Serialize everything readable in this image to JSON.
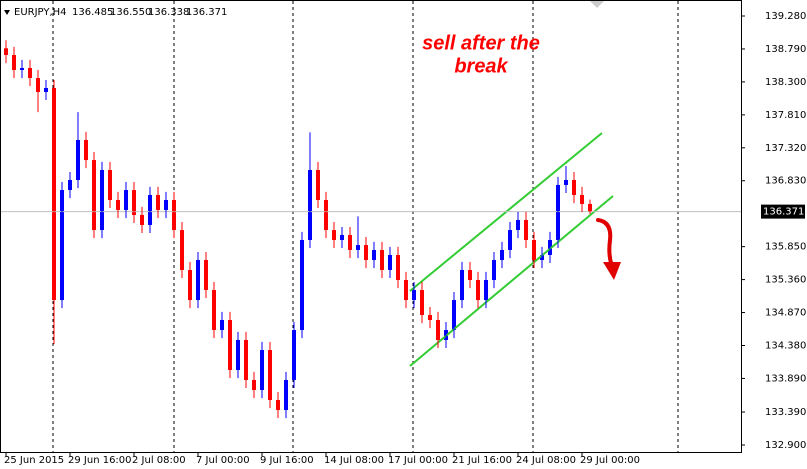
{
  "chart_data": {
    "type": "candlestick",
    "symbol": "EURJPY,H4",
    "header_values": [
      "136.485",
      "136.550",
      "136.338",
      "136.371"
    ],
    "annotation_lines": [
      "sell after the",
      "break"
    ],
    "up_color": "#0000ff",
    "down_color": "#ff0000",
    "categories": [
      "25 Jun 2015",
      null,
      null,
      null,
      null,
      null,
      null,
      null,
      "29 Jun 16:00",
      null,
      null,
      null,
      null,
      null,
      null,
      null,
      "2 Jul 08:00",
      null,
      null,
      null,
      null,
      null,
      null,
      null,
      "7 Jul 00:00",
      null,
      null,
      null,
      null,
      null,
      null,
      null,
      "9 Jul 16:00",
      null,
      null,
      null,
      null,
      null,
      null,
      null,
      "14 Jul 08:00",
      null,
      null,
      null,
      null,
      null,
      null,
      null,
      "17 Jul 00:00",
      null,
      null,
      null,
      null,
      null,
      null,
      null,
      "21 Jul 16:00",
      null,
      null,
      null,
      null,
      null,
      null,
      null,
      "24 Jul 08:00",
      null,
      null,
      null,
      null,
      null,
      null,
      null,
      "29 Jul 00:00",
      null
    ],
    "open": [
      138.8,
      138.7,
      138.477,
      138.507,
      138.358,
      138.15,
      138.209,
      135.056,
      136.692,
      136.841,
      137.436,
      137.138,
      136.097,
      136.99,
      136.544,
      136.395,
      136.692,
      136.321,
      136.172,
      136.618,
      136.395,
      136.544,
      136.097,
      135.503,
      135.056,
      135.651,
      135.205,
      134.61,
      134.759,
      134.015,
      134.462,
      133.867,
      133.718,
      134.313,
      133.569,
      133.42,
      133.867,
      134.61,
      135.949,
      136.99,
      136.544,
      136.097,
      135.949,
      136.023,
      135.8,
      135.874,
      135.651,
      135.8,
      135.503,
      135.726,
      135.354,
      135.056,
      135.205,
      134.833,
      134.759,
      134.462,
      134.61,
      135.056,
      135.503,
      135.354,
      135.056,
      135.354,
      135.651,
      135.8,
      136.097,
      136.246,
      135.949,
      135.651,
      135.726,
      135.949,
      136.767,
      136.841,
      136.618,
      136.485
    ],
    "high": [
      138.92,
      138.82,
      138.627,
      138.627,
      138.478,
      138.329,
      138.329,
      136.812,
      136.961,
      137.85,
      137.556,
      137.258,
      137.11,
      137.11,
      136.664,
      136.812,
      136.812,
      136.441,
      136.738,
      136.738,
      136.664,
      136.664,
      136.217,
      135.623,
      135.771,
      135.771,
      135.325,
      134.879,
      134.879,
      134.582,
      134.582,
      133.987,
      134.433,
      134.433,
      133.689,
      133.987,
      134.73,
      136.069,
      137.55,
      137.11,
      136.664,
      136.217,
      136.143,
      136.143,
      136.3,
      135.994,
      135.92,
      135.92,
      135.846,
      135.846,
      135.474,
      135.325,
      135.325,
      134.953,
      134.879,
      134.73,
      135.176,
      135.623,
      135.623,
      135.474,
      135.474,
      135.771,
      135.92,
      136.217,
      136.366,
      136.366,
      136.069,
      135.846,
      136.069,
      136.887,
      137.05,
      136.961,
      136.738,
      136.55
    ],
    "low": [
      138.58,
      138.357,
      138.357,
      138.238,
      137.85,
      138.03,
      134.4,
      134.936,
      136.572,
      136.721,
      137.018,
      135.977,
      135.977,
      136.424,
      136.275,
      136.275,
      136.201,
      136.052,
      136.052,
      136.275,
      136.275,
      135.977,
      135.383,
      134.936,
      134.936,
      135.085,
      134.49,
      134.49,
      133.895,
      133.895,
      133.747,
      133.598,
      133.598,
      133.449,
      133.3,
      133.3,
      133.747,
      134.49,
      135.829,
      136.424,
      135.977,
      135.829,
      135.829,
      135.68,
      135.68,
      135.531,
      135.531,
      135.383,
      135.383,
      135.234,
      134.936,
      134.936,
      134.713,
      134.639,
      134.342,
      134.342,
      134.49,
      134.936,
      135.234,
      134.936,
      134.936,
      135.234,
      135.531,
      135.68,
      135.977,
      135.829,
      135.531,
      135.531,
      135.606,
      135.829,
      136.647,
      136.498,
      136.365,
      136.338
    ],
    "close": [
      138.7,
      138.477,
      138.507,
      138.358,
      138.15,
      138.209,
      135.056,
      136.692,
      136.841,
      137.436,
      137.138,
      136.097,
      136.99,
      136.544,
      136.395,
      136.692,
      136.321,
      136.172,
      136.618,
      136.395,
      136.544,
      136.097,
      135.503,
      135.056,
      135.651,
      135.205,
      134.61,
      134.759,
      134.015,
      134.462,
      133.867,
      133.718,
      134.313,
      133.569,
      133.42,
      133.867,
      134.61,
      135.949,
      136.99,
      136.544,
      136.097,
      135.949,
      136.023,
      135.8,
      135.874,
      135.651,
      135.8,
      135.503,
      135.726,
      135.354,
      135.056,
      135.205,
      134.833,
      134.759,
      134.462,
      134.61,
      135.056,
      135.503,
      135.354,
      135.056,
      135.354,
      135.651,
      135.8,
      136.097,
      136.246,
      135.949,
      135.651,
      135.726,
      135.949,
      136.767,
      136.841,
      136.618,
      136.485,
      136.371
    ],
    "ylim": [
      132.796,
      139.518
    ],
    "yticks": [
      {
        "value": 139.28,
        "label": "139.280"
      },
      {
        "value": 138.79,
        "label": "138.790"
      },
      {
        "value": 138.3,
        "label": "138.300"
      },
      {
        "value": 137.81,
        "label": "137.810"
      },
      {
        "value": 137.32,
        "label": "137.320"
      },
      {
        "value": 136.83,
        "label": "136.830"
      },
      {
        "value": 135.85,
        "label": "135.850"
      },
      {
        "value": 135.36,
        "label": "135.360"
      },
      {
        "value": 134.87,
        "label": "134.870"
      },
      {
        "value": 134.38,
        "label": "134.380"
      },
      {
        "value": 133.89,
        "label": "133.890"
      },
      {
        "value": 133.39,
        "label": "133.390"
      },
      {
        "value": 132.9,
        "label": "132.900"
      }
    ],
    "last_price": {
      "value": 136.371,
      "label": "136.371"
    },
    "grid": false
  }
}
